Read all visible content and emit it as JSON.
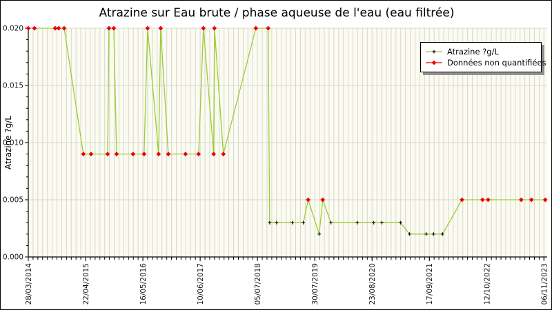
{
  "page": {
    "title": "Atrazine sur Eau brute / phase aqueuse de l'eau (eau filtrée)"
  },
  "legend": {
    "items": [
      {
        "label": "Atrazine ?g/L",
        "type": "quantified"
      },
      {
        "label": "Données non quantifiées",
        "type": "non_quantified"
      }
    ]
  },
  "chart_data": {
    "type": "line",
    "title": "Atrazine sur Eau brute / phase aqueuse de l'eau (eau filtrée)",
    "xlabel": "",
    "ylabel": "Atrazine ?g/L",
    "ylim": [
      0,
      0.02
    ],
    "y_major_step": 0.005,
    "y_minor_step": 0.001,
    "y_tick_labels": [
      "0.000",
      "0.005",
      "0.010",
      "0.015",
      "0.020"
    ],
    "x_tick_labels": [
      "28/03/2014",
      "22/04/2015",
      "16/05/2016",
      "10/06/2017",
      "05/07/2018",
      "30/07/2019",
      "23/08/2020",
      "17/09/2021",
      "12/10/2022",
      "06/11/2023"
    ],
    "x_axis_domain_days": 3532,
    "x_gridline_interval_days": 32.5,
    "grid": {
      "vertical": "every sample (~monthly)",
      "horizontal": "major y ticks"
    },
    "legend_position": "upper right",
    "colors": {
      "line": "#9bcc32",
      "quantified_marker": "#111111",
      "non_quantified_marker": "#ee0000",
      "plot_bg": "#fbfbf1",
      "grid": "#d7d7cf",
      "axis": "#000000",
      "tick_label": "#1a1a1a"
    },
    "series": [
      {
        "name": "Atrazine ?g/L",
        "points": [
          {
            "date": "28/03/2014",
            "value": 0.02,
            "quantified": false
          },
          {
            "date": "09/05/2014",
            "value": 0.02,
            "quantified": false
          },
          {
            "date": "27/09/2014",
            "value": 0.02,
            "quantified": false
          },
          {
            "date": "21/10/2014",
            "value": 0.02,
            "quantified": false
          },
          {
            "date": "27/11/2014",
            "value": 0.02,
            "quantified": false
          },
          {
            "date": "07/04/2015",
            "value": 0.009,
            "quantified": false
          },
          {
            "date": "29/05/2015",
            "value": 0.009,
            "quantified": false
          },
          {
            "date": "19/09/2015",
            "value": 0.009,
            "quantified": false
          },
          {
            "date": "28/09/2015",
            "value": 0.02,
            "quantified": false
          },
          {
            "date": "31/10/2015",
            "value": 0.02,
            "quantified": false
          },
          {
            "date": "19/11/2015",
            "value": 0.009,
            "quantified": false
          },
          {
            "date": "10/03/2016",
            "value": 0.009,
            "quantified": false
          },
          {
            "date": "24/05/2016",
            "value": 0.009,
            "quantified": false
          },
          {
            "date": "17/06/2016",
            "value": 0.02,
            "quantified": false
          },
          {
            "date": "31/08/2016",
            "value": 0.009,
            "quantified": false
          },
          {
            "date": "14/09/2016",
            "value": 0.02,
            "quantified": false
          },
          {
            "date": "05/11/2016",
            "value": 0.009,
            "quantified": false
          },
          {
            "date": "02/03/2017",
            "value": 0.009,
            "quantified": false
          },
          {
            "date": "30/05/2017",
            "value": 0.009,
            "quantified": false
          },
          {
            "date": "02/07/2017",
            "value": 0.02,
            "quantified": false
          },
          {
            "date": "10/09/2017",
            "value": 0.009,
            "quantified": false
          },
          {
            "date": "15/09/2017",
            "value": 0.02,
            "quantified": false
          },
          {
            "date": "15/11/2017",
            "value": 0.009,
            "quantified": false
          },
          {
            "date": "24/06/2018",
            "value": 0.02,
            "quantified": false
          },
          {
            "date": "16/09/2018",
            "value": 0.02,
            "quantified": false
          },
          {
            "date": "26/09/2018",
            "value": 0.003,
            "quantified": true
          },
          {
            "date": "12/11/2018",
            "value": 0.003,
            "quantified": true
          },
          {
            "date": "27/02/2019",
            "value": 0.003,
            "quantified": true
          },
          {
            "date": "13/05/2019",
            "value": 0.003,
            "quantified": true
          },
          {
            "date": "15/06/2019",
            "value": 0.005,
            "quantified": false
          },
          {
            "date": "29/08/2019",
            "value": 0.002,
            "quantified": true
          },
          {
            "date": "22/09/2019",
            "value": 0.005,
            "quantified": false
          },
          {
            "date": "17/11/2019",
            "value": 0.003,
            "quantified": true
          },
          {
            "date": "14/05/2020",
            "value": 0.003,
            "quantified": true
          },
          {
            "date": "03/09/2020",
            "value": 0.003,
            "quantified": true
          },
          {
            "date": "29/10/2020",
            "value": 0.003,
            "quantified": true
          },
          {
            "date": "05/03/2021",
            "value": 0.003,
            "quantified": true
          },
          {
            "date": "05/05/2021",
            "value": 0.002,
            "quantified": true
          },
          {
            "date": "26/08/2021",
            "value": 0.002,
            "quantified": true
          },
          {
            "date": "16/10/2021",
            "value": 0.002,
            "quantified": true
          },
          {
            "date": "16/12/2021",
            "value": 0.002,
            "quantified": true
          },
          {
            "date": "27/04/2022",
            "value": 0.005,
            "quantified": false
          },
          {
            "date": "14/09/2022",
            "value": 0.005,
            "quantified": false
          },
          {
            "date": "22/10/2022",
            "value": 0.005,
            "quantified": false
          },
          {
            "date": "04/06/2023",
            "value": 0.005,
            "quantified": false
          },
          {
            "date": "13/08/2023",
            "value": 0.005,
            "quantified": false
          },
          {
            "date": "15/11/2023",
            "value": 0.005,
            "quantified": false
          }
        ]
      }
    ]
  }
}
